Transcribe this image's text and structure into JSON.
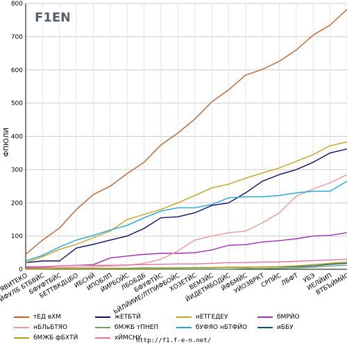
{
  "footer": "http://f1.f-e-n.net/",
  "logo_text": "F1EN",
  "chart_data": {
    "type": "line",
    "title": "",
    "xlabel": "",
    "ylabel": "ФПЮЛИ",
    "ylim": [
      0,
      800
    ],
    "yticks": [
      0,
      100,
      200,
      300,
      400,
      500,
      600,
      700,
      800
    ],
    "grid": true,
    "legend_position": "bottom",
    "categories": [
      "ЯВИТЕКО",
      "ЙФУЛБ БТБВЙС",
      "БФУФТБЙС",
      "БЕТТВКДЦБО",
      "ИБСНЙ",
      "ИПОБЛП",
      "ЙИРБОЙС",
      "ЛБОБДБ",
      "БФУФТЙС",
      "ЬЙЛЙИИЕ/ЛТПИФБОЙС",
      "ХОЗЕТЙС",
      "ВЕМЗЙС",
      "ЙИДЕТМБОДЙС",
      "ЙФБМЙС",
      "УЙОЗВРКТ",
      "СРПЙС",
      "ЛБФТ",
      "УБЭ",
      "ИЕЛЙИП",
      "ВТБЪЙМЙС"
    ],
    "series": [
      {
        "name": "тЕД вХМ",
        "color": "#c0602a",
        "values": [
          45,
          88,
          124,
          180,
          225,
          250,
          288,
          322,
          374,
          410,
          452,
          504,
          540,
          584,
          602,
          626,
          660,
          705,
          735,
          782
        ]
      },
      {
        "name": "жЕТБТЙ",
        "color": "#0a0a6a",
        "values": [
          20,
          25,
          25,
          64,
          75,
          88,
          100,
          123,
          155,
          158,
          170,
          192,
          200,
          230,
          265,
          285,
          300,
          322,
          350,
          362
        ]
      },
      {
        "name": "нЕТГЕДЕУ",
        "color": "#c8a020",
        "values": [
          20,
          38,
          60,
          75,
          95,
          115,
          150,
          165,
          180,
          200,
          222,
          245,
          256,
          274,
          290,
          305,
          325,
          345,
          372,
          383
        ]
      },
      {
        "name": "бМРЙО",
        "color": "#9a30b8",
        "values": [
          5,
          6,
          10,
          12,
          14,
          34,
          40,
          45,
          48,
          48,
          50,
          58,
          72,
          74,
          82,
          86,
          92,
          100,
          102,
          110
        ]
      },
      {
        "name": "нБЛьБТЯО",
        "color": "#e89a90",
        "values": [
          3,
          4,
          5,
          6,
          8,
          10,
          12,
          18,
          30,
          55,
          88,
          100,
          110,
          115,
          140,
          170,
          220,
          242,
          260,
          285
        ]
      },
      {
        "name": "бМЖБ тПНЕП",
        "color": "#70a060",
        "values": [
          1,
          1,
          1,
          1,
          1,
          1,
          1,
          1,
          1,
          1,
          1,
          1,
          1,
          2,
          2,
          3,
          4,
          6,
          10,
          12
        ]
      },
      {
        "name": "бУФЯО нБТФЙО",
        "color": "#1aa8d8",
        "values": [
          25,
          42,
          67,
          88,
          102,
          118,
          132,
          155,
          175,
          185,
          185,
          195,
          215,
          218,
          218,
          222,
          230,
          235,
          235,
          265
        ]
      },
      {
        "name": "иББУ",
        "color": "#0c5080",
        "values": [
          1,
          1,
          2,
          2,
          3,
          3,
          3,
          4,
          4,
          4,
          5,
          5,
          6,
          6,
          7,
          7,
          8,
          10,
          15,
          18
        ]
      },
      {
        "name": "бМЖБ фБХТЙ",
        "color": "#b0a010",
        "values": [
          1,
          1,
          2,
          2,
          2,
          3,
          3,
          3,
          4,
          4,
          5,
          5,
          6,
          6,
          7,
          8,
          10,
          14,
          18,
          22
        ]
      },
      {
        "name": "хЙМСНУ",
        "color": "#e070a8",
        "values": [
          8,
          8,
          10,
          12,
          12,
          12,
          13,
          14,
          15,
          16,
          16,
          18,
          20,
          20,
          22,
          22,
          24,
          26,
          28,
          30
        ]
      }
    ]
  }
}
